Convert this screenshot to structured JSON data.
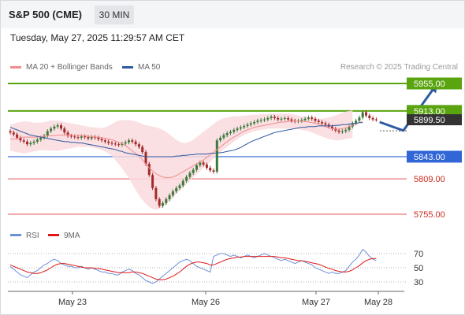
{
  "header": {
    "title": "S&P 500 (CME)",
    "timeframe": "30 MIN"
  },
  "datetime": "Tuesday, May 27, 2025 11:29:57 AM CET",
  "legend": {
    "ma20_label": "MA 20 + Bollinger Bands",
    "ma50_label": "MA 50",
    "credit": "Research © 2025 Trading Central"
  },
  "colors": {
    "resistance": "#5aa410",
    "support_blue": "#3266d6",
    "support_red": "#e25959",
    "candle_up": "#3c7a3a",
    "candle_down": "#a42a2a",
    "bollinger": "#f9d9de",
    "ma20": "#f28c8c",
    "ma50": "#2d5aa0",
    "rsi": "#6b8fd8",
    "rsi_ma": "#e01818",
    "projection": "#2d5aa0"
  },
  "chart_data": [
    {
      "type": "candlestick",
      "title": "",
      "x_labels": [
        "May 23",
        "May 26",
        "May 27",
        "May 28"
      ],
      "ylim": [
        5740,
        5965
      ],
      "levels": [
        {
          "value": 5955.0,
          "label": "5955.00",
          "kind": "resistance"
        },
        {
          "value": 5913.0,
          "label": "5913.00",
          "kind": "resistance"
        },
        {
          "value": 5843.0,
          "label": "5843.00",
          "kind": "pivot"
        },
        {
          "value": 5809.0,
          "label": "5809.00",
          "kind": "support"
        },
        {
          "value": 5755.0,
          "label": "5755.00",
          "kind": "support"
        }
      ],
      "current_price": {
        "value": 5899.5,
        "label": "5899.50"
      },
      "close": [
        5880,
        5877,
        5872,
        5868,
        5866,
        5862,
        5864,
        5866,
        5869,
        5872,
        5875,
        5882,
        5886,
        5889,
        5891,
        5886,
        5880,
        5875,
        5874,
        5873,
        5872,
        5874,
        5873,
        5871,
        5873,
        5872,
        5870,
        5868,
        5866,
        5864,
        5863,
        5862,
        5861,
        5863,
        5865,
        5868,
        5866,
        5862,
        5858,
        5850,
        5832,
        5815,
        5795,
        5778,
        5768,
        5772,
        5778,
        5784,
        5790,
        5795,
        5799,
        5806,
        5812,
        5818,
        5823,
        5830,
        5834,
        5831,
        5826,
        5822,
        5820,
        5868,
        5872,
        5876,
        5879,
        5881,
        5884,
        5886,
        5888,
        5890,
        5892,
        5894,
        5896,
        5898,
        5899,
        5900,
        5902,
        5904,
        5902,
        5900,
        5901,
        5902,
        5900,
        5898,
        5897,
        5898,
        5899,
        5901,
        5903,
        5901,
        5898,
        5896,
        5894,
        5892,
        5889,
        5886,
        5883,
        5881,
        5882,
        5884,
        5889,
        5894,
        5898,
        5903,
        5911,
        5906,
        5902,
        5900,
        5899.5
      ],
      "ma20": [
        5870,
        5870,
        5871,
        5872,
        5873,
        5873,
        5873,
        5873,
        5873,
        5874,
        5874,
        5875,
        5875,
        5875,
        5876,
        5876,
        5876,
        5876,
        5876,
        5876,
        5876,
        5876,
        5875,
        5874,
        5874,
        5873,
        5873,
        5872,
        5871,
        5870,
        5869,
        5867,
        5865,
        5863,
        5860,
        5856,
        5852,
        5848,
        5844,
        5838,
        5832,
        5826,
        5821,
        5817,
        5814,
        5812,
        5811,
        5811,
        5812,
        5814,
        5817,
        5820,
        5823,
        5826,
        5829,
        5832,
        5835,
        5838,
        5842,
        5846,
        5850,
        5854,
        5858,
        5862,
        5866,
        5870,
        5873,
        5876,
        5879,
        5882,
        5884,
        5886,
        5888,
        5889,
        5890,
        5891,
        5892,
        5893,
        5894,
        5895,
        5896,
        5896,
        5897,
        5897,
        5897,
        5897,
        5897,
        5897,
        5896,
        5895,
        5894,
        5893,
        5891,
        5889,
        5887,
        5886,
        5885,
        5885,
        5886,
        5887,
        5889,
        5891,
        5893,
        5895,
        5897
      ],
      "ma50": [
        5888,
        5886,
        5884,
        5882,
        5880,
        5878,
        5876,
        5875,
        5874,
        5873,
        5872,
        5871,
        5870,
        5869,
        5868,
        5867,
        5866,
        5866,
        5865,
        5865,
        5864,
        5864,
        5863,
        5862,
        5861,
        5860,
        5859,
        5858,
        5857,
        5856,
        5855,
        5854,
        5852,
        5851,
        5849,
        5848,
        5847,
        5846,
        5845,
        5844,
        5843,
        5843,
        5843,
        5843,
        5843,
        5843,
        5843,
        5843,
        5843,
        5844,
        5844,
        5845,
        5845,
        5846,
        5846,
        5847,
        5847,
        5847,
        5847,
        5848,
        5848,
        5849,
        5849,
        5850,
        5851,
        5852,
        5853,
        5855,
        5857,
        5860,
        5863,
        5866,
        5868,
        5870,
        5872,
        5874,
        5876,
        5878,
        5880,
        5881,
        5882,
        5883,
        5884,
        5885,
        5886,
        5887,
        5888,
        5888,
        5889,
        5889,
        5889,
        5890,
        5890,
        5890,
        5890,
        5890,
        5891,
        5891,
        5892,
        5892,
        5893,
        5894,
        5894,
        5895,
        5895
      ],
      "bollinger_upper": [
        5892,
        5893,
        5895,
        5896,
        5897,
        5897,
        5896,
        5895,
        5895,
        5895,
        5896,
        5897,
        5898,
        5898,
        5898,
        5897,
        5896,
        5895,
        5894,
        5893,
        5892,
        5891,
        5890,
        5889,
        5888,
        5888,
        5887,
        5887,
        5888,
        5890,
        5893,
        5896,
        5898,
        5899,
        5899,
        5899,
        5898,
        5897,
        5895,
        5893,
        5891,
        5890,
        5889,
        5888,
        5886,
        5884,
        5881,
        5877,
        5873,
        5869,
        5866,
        5864,
        5864,
        5866,
        5869,
        5873,
        5877,
        5881,
        5885,
        5889,
        5893,
        5897,
        5900,
        5902,
        5903,
        5904,
        5905,
        5905,
        5905,
        5906,
        5906,
        5907,
        5907,
        5907,
        5908,
        5908,
        5908,
        5909,
        5909,
        5909,
        5909,
        5909,
        5909,
        5908,
        5907,
        5906,
        5905,
        5904,
        5903,
        5902,
        5901,
        5901,
        5901,
        5902,
        5903,
        5904,
        5906,
        5908,
        5910,
        5912,
        5913,
        5914
      ],
      "bollinger_lower": [
        5852,
        5851,
        5850,
        5849,
        5848,
        5849,
        5850,
        5851,
        5852,
        5853,
        5853,
        5853,
        5852,
        5852,
        5852,
        5853,
        5854,
        5855,
        5856,
        5857,
        5858,
        5858,
        5858,
        5858,
        5857,
        5856,
        5855,
        5853,
        5851,
        5848,
        5844,
        5838,
        5832,
        5825,
        5818,
        5810,
        5801,
        5792,
        5784,
        5777,
        5771,
        5766,
        5763,
        5762,
        5763,
        5766,
        5770,
        5775,
        5780,
        5786,
        5791,
        5796,
        5801,
        5806,
        5811,
        5816,
        5821,
        5826,
        5830,
        5835,
        5840,
        5845,
        5850,
        5854,
        5858,
        5862,
        5866,
        5870,
        5873,
        5876,
        5878,
        5880,
        5882,
        5883,
        5884,
        5885,
        5886,
        5886,
        5886,
        5886,
        5886,
        5886,
        5886,
        5886,
        5885,
        5885,
        5884,
        5883,
        5882,
        5880,
        5878,
        5876,
        5874,
        5872,
        5870,
        5869,
        5868,
        5868,
        5869,
        5870,
        5871,
        5872
      ],
      "projection": [
        {
          "x_index": 109,
          "value": 5896
        },
        {
          "x_index": 116,
          "value": 5883
        },
        {
          "x_index": 126,
          "value": 5955
        }
      ]
    },
    {
      "type": "line",
      "title": "",
      "series": [
        {
          "name": "RSI",
          "values": [
            52,
            48,
            44,
            40,
            38,
            36,
            40,
            44,
            46,
            50,
            54,
            56,
            60,
            62,
            60,
            56,
            54,
            52,
            52,
            50,
            50,
            52,
            50,
            48,
            50,
            48,
            46,
            44,
            44,
            42,
            42,
            40,
            40,
            44,
            46,
            48,
            46,
            42,
            40,
            36,
            32,
            30,
            28,
            30,
            34,
            38,
            42,
            46,
            50,
            54,
            58,
            60,
            62,
            60,
            56,
            52,
            50,
            48,
            46,
            44,
            66,
            68,
            70,
            70,
            68,
            66,
            68,
            66,
            64,
            66,
            68,
            66,
            64,
            66,
            68,
            70,
            68,
            66,
            64,
            62,
            60,
            62,
            60,
            58,
            56,
            58,
            60,
            58,
            56,
            54,
            50,
            48,
            46,
            44,
            42,
            44,
            42,
            42,
            44,
            46,
            52,
            58,
            62,
            68,
            76,
            72,
            66,
            62,
            60
          ]
        },
        {
          "name": "9MA",
          "values": [
            54,
            52,
            50,
            48,
            46,
            44,
            43,
            42,
            42,
            43,
            45,
            47,
            50,
            53,
            55,
            56,
            56,
            55,
            54,
            53,
            52,
            51,
            50,
            50,
            50,
            49,
            49,
            48,
            47,
            46,
            45,
            44,
            43,
            43,
            43,
            43,
            44,
            44,
            43,
            42,
            40,
            38,
            36,
            34,
            33,
            33,
            34,
            36,
            38,
            41,
            44,
            48,
            52,
            55,
            57,
            58,
            58,
            57,
            56,
            54,
            54,
            56,
            58,
            60,
            62,
            63,
            64,
            65,
            65,
            66,
            66,
            66,
            66,
            66,
            66,
            66,
            66,
            66,
            66,
            65,
            64,
            64,
            63,
            62,
            61,
            60,
            60,
            59,
            58,
            57,
            56,
            55,
            53,
            51,
            49,
            48,
            46,
            45,
            44,
            44,
            45,
            47,
            50,
            53,
            57,
            60,
            62,
            63,
            63
          ]
        }
      ],
      "y_ticks": [
        70,
        50,
        30
      ],
      "ylim": [
        20,
        80
      ]
    }
  ]
}
